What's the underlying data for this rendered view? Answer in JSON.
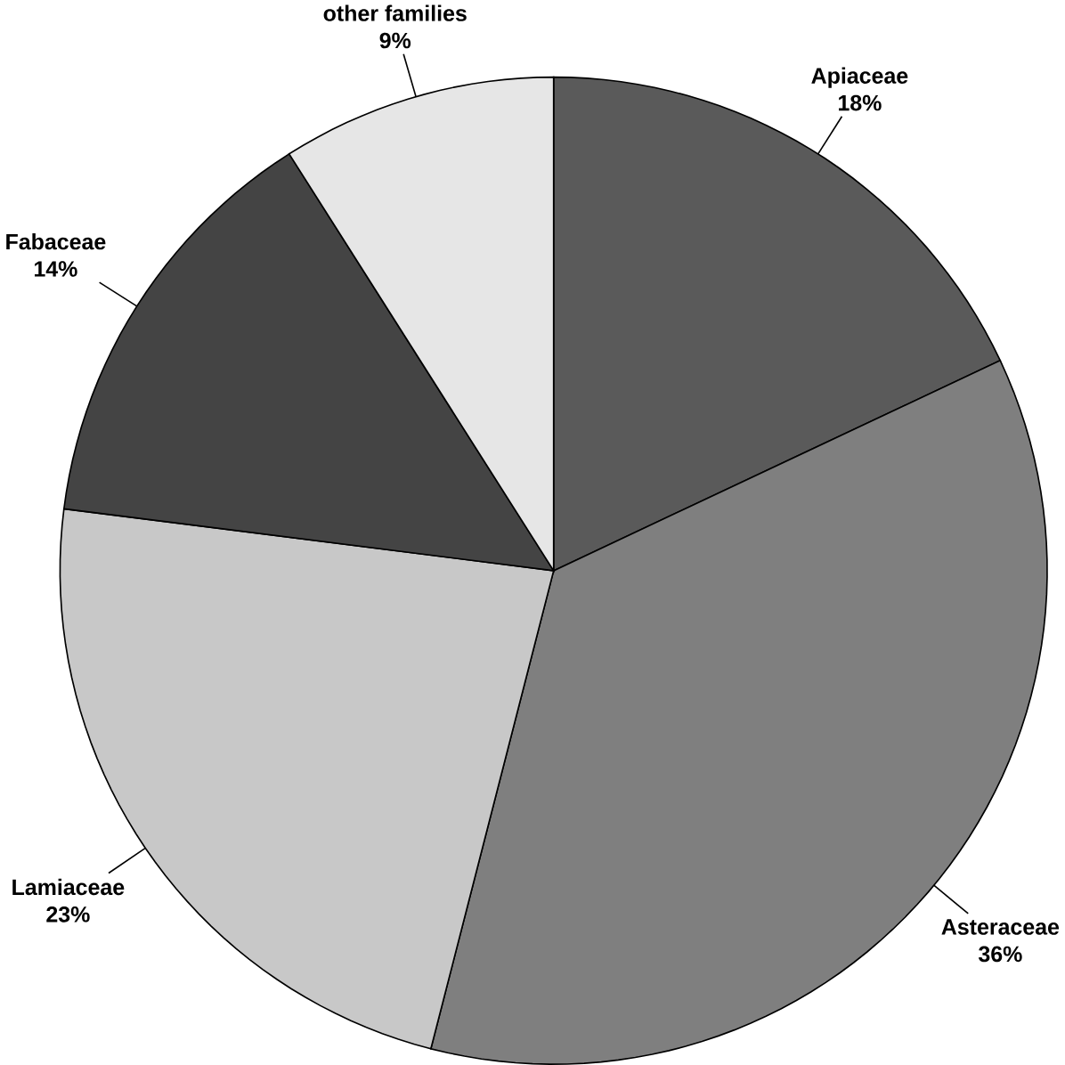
{
  "chart_data": {
    "type": "pie",
    "categories": [
      "Apiaceae",
      "Asteraceae",
      "Lamiaceae",
      "Fabaceae",
      "other families"
    ],
    "values": [
      18,
      36,
      23,
      14,
      9
    ],
    "value_labels": [
      "18%",
      "36%",
      "23%",
      "14%",
      "9%"
    ],
    "colors": [
      "#5a5a5a",
      "#7f7f7f",
      "#c8c8c8",
      "#444444",
      "#e6e6e6"
    ]
  }
}
